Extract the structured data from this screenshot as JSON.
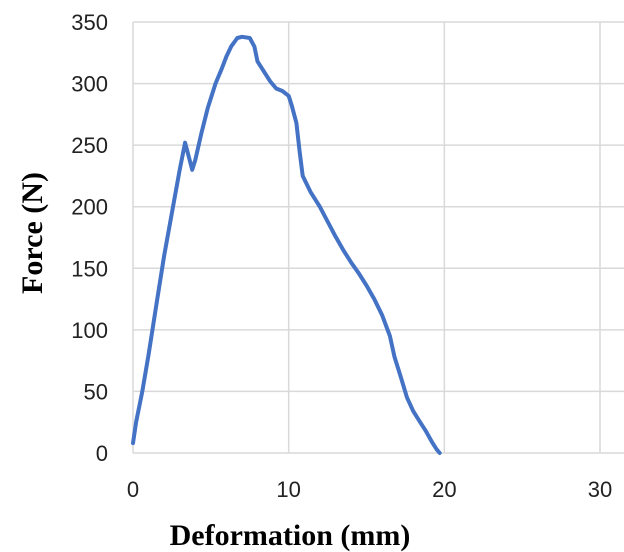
{
  "chart_data": {
    "type": "line",
    "title": "",
    "xlabel": "Deformation (mm)",
    "ylabel": "Force (N)",
    "xlim": [
      0,
      30
    ],
    "ylim": [
      0,
      350
    ],
    "xticks": [
      0,
      10,
      20,
      30
    ],
    "yticks": [
      0,
      50,
      100,
      150,
      200,
      250,
      300,
      350
    ],
    "grid": true,
    "legend": "none",
    "series": [
      {
        "color": "#4472C4",
        "points": [
          [
            0.0,
            8
          ],
          [
            0.2,
            25
          ],
          [
            0.6,
            50
          ],
          [
            1.0,
            80
          ],
          [
            1.5,
            120
          ],
          [
            2.0,
            160
          ],
          [
            2.5,
            195
          ],
          [
            3.0,
            230
          ],
          [
            3.35,
            252
          ],
          [
            3.6,
            240
          ],
          [
            3.8,
            230
          ],
          [
            4.0,
            238
          ],
          [
            4.4,
            260
          ],
          [
            4.8,
            280
          ],
          [
            5.3,
            300
          ],
          [
            5.7,
            312
          ],
          [
            6.0,
            322
          ],
          [
            6.3,
            330
          ],
          [
            6.7,
            337
          ],
          [
            7.0,
            338
          ],
          [
            7.5,
            337
          ],
          [
            7.8,
            330
          ],
          [
            8.0,
            318
          ],
          [
            8.4,
            310
          ],
          [
            8.8,
            302
          ],
          [
            9.2,
            296
          ],
          [
            9.6,
            294
          ],
          [
            10.0,
            290
          ],
          [
            10.2,
            282
          ],
          [
            10.5,
            268
          ],
          [
            10.7,
            245
          ],
          [
            10.9,
            225
          ],
          [
            11.4,
            212
          ],
          [
            12.0,
            200
          ],
          [
            12.5,
            188
          ],
          [
            13.0,
            176
          ],
          [
            13.5,
            165
          ],
          [
            14.0,
            155
          ],
          [
            14.5,
            146
          ],
          [
            15.0,
            136
          ],
          [
            15.5,
            125
          ],
          [
            16.0,
            112
          ],
          [
            16.5,
            95
          ],
          [
            16.8,
            78
          ],
          [
            17.2,
            62
          ],
          [
            17.6,
            45
          ],
          [
            18.0,
            34
          ],
          [
            18.4,
            26
          ],
          [
            18.8,
            18
          ],
          [
            19.2,
            9
          ],
          [
            19.5,
            3
          ],
          [
            19.7,
            0
          ]
        ]
      }
    ]
  }
}
